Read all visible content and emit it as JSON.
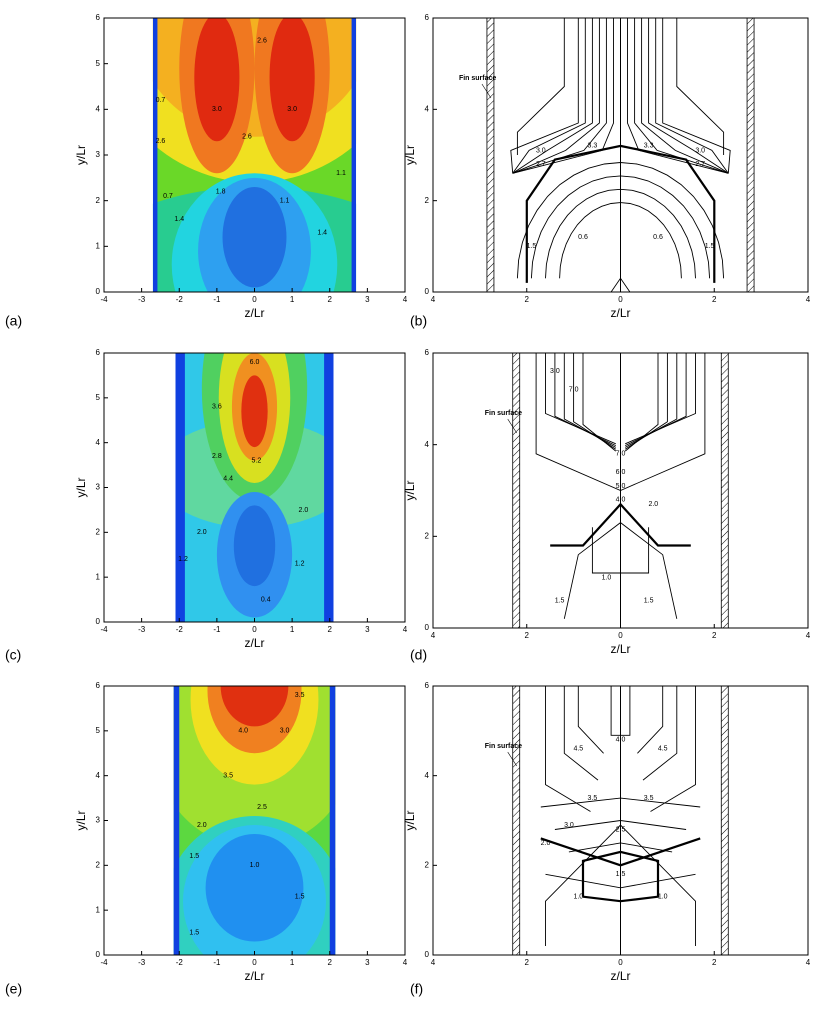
{
  "chart_data": [
    {
      "type": "contour",
      "style": "filled",
      "panel_label": "(a)",
      "x_label": "z/Lr",
      "y_label": "y/Lr",
      "xlim": [
        -4,
        4
      ],
      "ylim": [
        0,
        6
      ],
      "xticks": [
        -4,
        -3,
        -2,
        -1,
        0,
        1,
        2,
        3,
        4
      ],
      "yticks": [
        0,
        1,
        2,
        3,
        4,
        5,
        6
      ],
      "half_width": 2.7,
      "contour_labels": [
        "3.0",
        "3.0",
        "2.6",
        "2.6",
        "2.6",
        "1.8",
        "1.1",
        "1.4",
        "0.7",
        "0.7",
        "1.4",
        "1.1"
      ]
    },
    {
      "type": "contour",
      "style": "lines",
      "panel_label": "(b)",
      "x_label": "z/Lr",
      "y_label": "y/Lr",
      "xlim": [
        -4,
        4
      ],
      "ylim": [
        0,
        6
      ],
      "xticks": [
        {
          "value": -4,
          "label": "4"
        },
        {
          "value": -2,
          "label": "2"
        },
        0,
        {
          "value": 2,
          "label": "2"
        },
        4
      ],
      "yticks": [
        0,
        2,
        4,
        6
      ],
      "half_width": 2.7,
      "annotation": "Fin surface",
      "contour_labels": [
        "3.3",
        "3.3",
        "3.0",
        "3.0",
        "2.7",
        "2.7",
        "0.6",
        "0.6",
        "1.5",
        "1.5"
      ]
    },
    {
      "type": "contour",
      "style": "filled",
      "panel_label": "(c)",
      "x_label": "z/Lr",
      "y_label": "y/Lr",
      "xlim": [
        -4,
        4
      ],
      "ylim": [
        0,
        6
      ],
      "xticks": [
        -4,
        -3,
        -2,
        -1,
        0,
        1,
        2,
        3,
        4
      ],
      "yticks": [
        0,
        1,
        2,
        3,
        4,
        5,
        6
      ],
      "half_width": 2.1,
      "contour_labels": [
        "6.0",
        "5.2",
        "4.4",
        "3.6",
        "2.8",
        "2.0",
        "2.0",
        "1.2",
        "1.2",
        "0.4"
      ]
    },
    {
      "type": "contour",
      "style": "lines",
      "panel_label": "(d)",
      "x_label": "z/Lr",
      "y_label": "y/Lr",
      "xlim": [
        -4,
        4
      ],
      "ylim": [
        0,
        6
      ],
      "xticks": [
        {
          "value": -4,
          "label": "4"
        },
        {
          "value": -2,
          "label": "2"
        },
        0,
        {
          "value": 2,
          "label": "2"
        },
        4
      ],
      "yticks": [
        0,
        2,
        4,
        6
      ],
      "half_width": 2.15,
      "annotation": "Fin surface",
      "contour_labels": [
        "7.0",
        "7.0",
        "6.0",
        "5.0",
        "4.0",
        "3.0",
        "2.0",
        "1.0",
        "1.5",
        "1.5"
      ]
    },
    {
      "type": "contour",
      "style": "filled",
      "panel_label": "(e)",
      "x_label": "z/Lr",
      "y_label": "y/Lr",
      "xlim": [
        -4,
        4
      ],
      "ylim": [
        0,
        6
      ],
      "xticks": [
        -4,
        -3,
        -2,
        -1,
        0,
        1,
        2,
        3,
        4
      ],
      "yticks": [
        0,
        1,
        2,
        3,
        4,
        5,
        6
      ],
      "half_width": 2.15,
      "contour_labels": [
        "4.0",
        "3.5",
        "3.5",
        "3.0",
        "2.5",
        "2.0",
        "1.5",
        "1.0",
        "1.5",
        "1.5"
      ]
    },
    {
      "type": "contour",
      "style": "lines",
      "panel_label": "(f)",
      "x_label": "z/Lr",
      "y_label": "y/Lr",
      "xlim": [
        -4,
        4
      ],
      "ylim": [
        0,
        6
      ],
      "xticks": [
        {
          "value": -4,
          "label": "4"
        },
        {
          "value": -2,
          "label": "2"
        },
        0,
        {
          "value": 2,
          "label": "2"
        },
        4
      ],
      "yticks": [
        0,
        2,
        4,
        6
      ],
      "half_width": 2.15,
      "annotation": "Fin surface",
      "contour_labels": [
        "4.5",
        "4.5",
        "4.0",
        "3.5",
        "3.5",
        "3.0",
        "2.5",
        "2.0",
        "1.5",
        "1.0",
        "1.0"
      ]
    }
  ]
}
